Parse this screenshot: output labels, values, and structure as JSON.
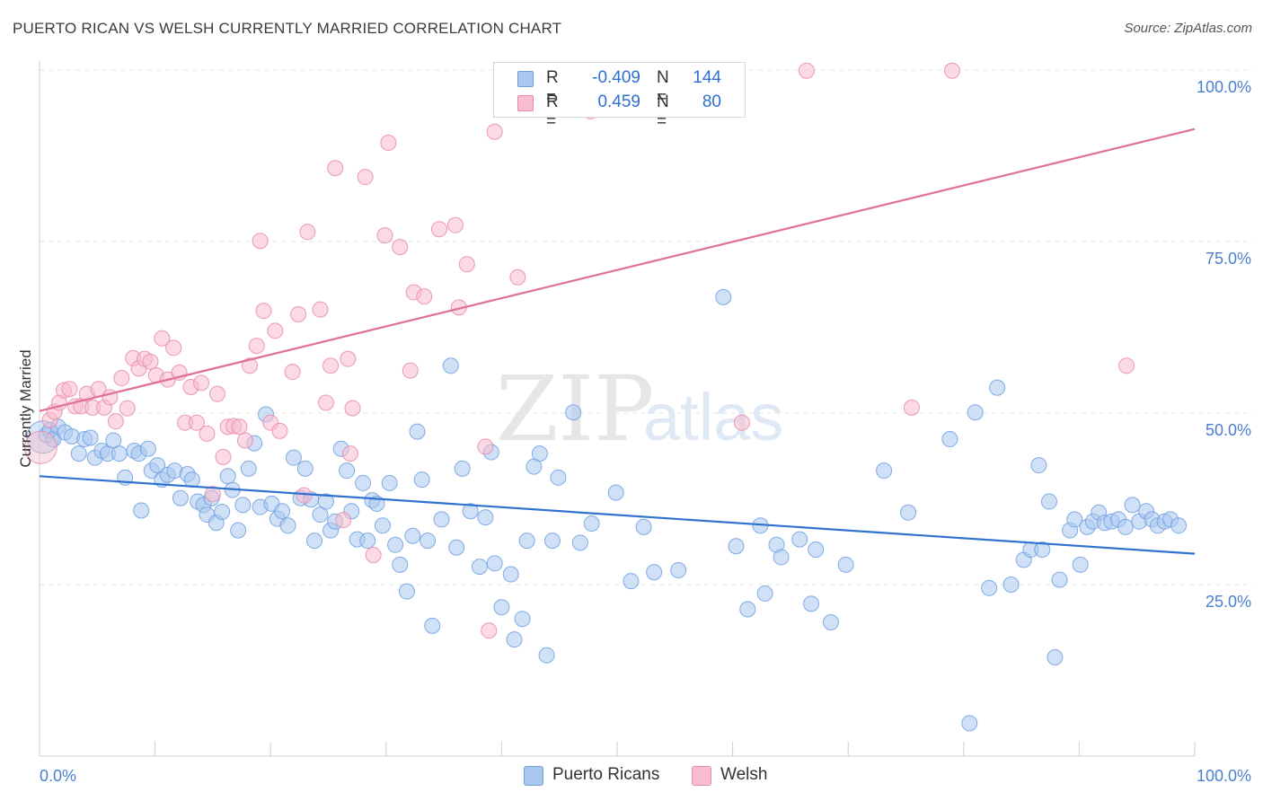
{
  "title": "PUERTO RICAN VS WELSH CURRENTLY MARRIED CORRELATION CHART",
  "source": "Source: ZipAtlas.com",
  "watermark": {
    "zip": "ZIP",
    "atlas": "atlas"
  },
  "legend": {
    "rows": [
      {
        "r_label": "R =",
        "r_value": "-0.409",
        "n_label": "N =",
        "n_value": "144",
        "color": "#a9c8f0",
        "border": "#6f9fdf"
      },
      {
        "r_label": "R =",
        "r_value": "0.459",
        "n_label": "N =",
        "n_value": "80",
        "color": "#f7bccd",
        "border": "#e78aa8"
      }
    ]
  },
  "bottom_legend": [
    {
      "label": "Puerto Ricans",
      "color": "#a9c8f0",
      "border": "#6f9fdf"
    },
    {
      "label": "Welsh",
      "color": "#f7bccd",
      "border": "#e78aa8"
    }
  ],
  "chart_data": {
    "type": "scatter",
    "title": "PUERTO RICAN VS WELSH CURRENTLY MARRIED CORRELATION CHART",
    "xlabel": "",
    "ylabel": "Currently Married",
    "xlim": [
      0,
      100
    ],
    "ylim": [
      0,
      100
    ],
    "x_tick_labels": [
      "0.0%",
      "100.0%"
    ],
    "y_ticks": [
      25,
      50,
      75,
      100
    ],
    "y_tick_labels": [
      "25.0%",
      "50.0%",
      "75.0%",
      "100.0%"
    ],
    "grid": true,
    "legend_position": "top-center",
    "series": [
      {
        "name": "Puerto Ricans",
        "color": "#6f9fdf",
        "fill": "#a9c8f0",
        "R": -0.409,
        "N": 144,
        "trend": {
          "x": [
            0,
            100
          ],
          "y": [
            40.8,
            29.5
          ]
        },
        "points": [
          [
            0.3,
            46.5
          ],
          [
            0.6,
            46.8
          ],
          [
            0.9,
            47.5
          ],
          [
            1.2,
            46.2
          ],
          [
            1.6,
            48.0
          ],
          [
            2.2,
            47.2
          ],
          [
            2.8,
            46.6
          ],
          [
            3.4,
            44.1
          ],
          [
            3.9,
            46.2
          ],
          [
            4.4,
            46.4
          ],
          [
            4.8,
            43.5
          ],
          [
            5.4,
            44.5
          ],
          [
            5.9,
            44.1
          ],
          [
            6.4,
            46.0
          ],
          [
            6.9,
            44.1
          ],
          [
            7.4,
            40.6
          ],
          [
            8.2,
            44.5
          ],
          [
            8.6,
            44.1
          ],
          [
            8.8,
            35.8
          ],
          [
            9.4,
            44.8
          ],
          [
            9.7,
            41.6
          ],
          [
            10.2,
            42.4
          ],
          [
            10.6,
            40.3
          ],
          [
            11.1,
            41.0
          ],
          [
            11.7,
            41.6
          ],
          [
            12.2,
            37.6
          ],
          [
            12.8,
            41.1
          ],
          [
            13.2,
            40.3
          ],
          [
            13.7,
            37.1
          ],
          [
            14.2,
            36.6
          ],
          [
            14.5,
            35.2
          ],
          [
            14.9,
            37.6
          ],
          [
            15.3,
            34.0
          ],
          [
            15.8,
            35.6
          ],
          [
            16.3,
            40.8
          ],
          [
            16.7,
            38.8
          ],
          [
            17.2,
            32.9
          ],
          [
            17.6,
            36.6
          ],
          [
            18.1,
            41.9
          ],
          [
            18.6,
            45.6
          ],
          [
            19.1,
            36.3
          ],
          [
            19.6,
            49.8
          ],
          [
            20.1,
            36.8
          ],
          [
            20.6,
            34.6
          ],
          [
            21.0,
            35.7
          ],
          [
            21.5,
            33.6
          ],
          [
            22.0,
            43.5
          ],
          [
            22.6,
            37.6
          ],
          [
            23.0,
            41.9
          ],
          [
            23.5,
            37.4
          ],
          [
            23.8,
            31.4
          ],
          [
            24.3,
            35.2
          ],
          [
            24.8,
            37.1
          ],
          [
            25.2,
            32.9
          ],
          [
            25.6,
            34.2
          ],
          [
            26.1,
            44.8
          ],
          [
            26.6,
            41.6
          ],
          [
            27.0,
            35.7
          ],
          [
            27.5,
            31.6
          ],
          [
            28.0,
            39.8
          ],
          [
            28.4,
            31.4
          ],
          [
            28.8,
            37.3
          ],
          [
            29.2,
            36.8
          ],
          [
            29.7,
            33.6
          ],
          [
            30.3,
            39.8
          ],
          [
            30.8,
            30.8
          ],
          [
            31.2,
            27.9
          ],
          [
            31.8,
            24.0
          ],
          [
            32.3,
            32.1
          ],
          [
            32.7,
            47.3
          ],
          [
            33.1,
            40.3
          ],
          [
            33.6,
            31.4
          ],
          [
            34.0,
            19.0
          ],
          [
            34.8,
            34.5
          ],
          [
            35.6,
            56.9
          ],
          [
            36.1,
            30.4
          ],
          [
            36.6,
            41.9
          ],
          [
            37.3,
            35.7
          ],
          [
            38.1,
            27.6
          ],
          [
            38.6,
            34.8
          ],
          [
            39.1,
            44.3
          ],
          [
            39.4,
            28.1
          ],
          [
            40.0,
            21.7
          ],
          [
            41.1,
            17.0
          ],
          [
            40.8,
            26.5
          ],
          [
            41.8,
            20.0
          ],
          [
            42.2,
            31.4
          ],
          [
            42.8,
            42.2
          ],
          [
            43.3,
            44.1
          ],
          [
            43.9,
            14.7
          ],
          [
            44.4,
            31.4
          ],
          [
            44.9,
            40.6
          ],
          [
            46.2,
            50.1
          ],
          [
            46.8,
            31.1
          ],
          [
            47.8,
            33.9
          ],
          [
            49.9,
            38.4
          ],
          [
            51.2,
            25.5
          ],
          [
            52.3,
            33.4
          ],
          [
            53.2,
            26.8
          ],
          [
            55.3,
            27.1
          ],
          [
            59.2,
            66.9
          ],
          [
            60.3,
            30.6
          ],
          [
            61.3,
            21.4
          ],
          [
            62.4,
            33.6
          ],
          [
            62.8,
            23.7
          ],
          [
            63.8,
            30.8
          ],
          [
            64.2,
            29.0
          ],
          [
            65.8,
            31.6
          ],
          [
            66.8,
            22.2
          ],
          [
            67.2,
            30.1
          ],
          [
            68.5,
            19.5
          ],
          [
            69.8,
            27.9
          ],
          [
            73.1,
            41.6
          ],
          [
            75.2,
            35.5
          ],
          [
            78.8,
            46.2
          ],
          [
            80.5,
            4.8
          ],
          [
            81.0,
            50.1
          ],
          [
            82.2,
            24.5
          ],
          [
            82.9,
            53.7
          ],
          [
            84.1,
            25.0
          ],
          [
            85.2,
            28.6
          ],
          [
            85.8,
            30.1
          ],
          [
            86.5,
            42.4
          ],
          [
            86.8,
            30.1
          ],
          [
            87.4,
            37.1
          ],
          [
            87.9,
            14.4
          ],
          [
            88.3,
            25.7
          ],
          [
            89.2,
            32.9
          ],
          [
            89.6,
            34.5
          ],
          [
            90.1,
            27.9
          ],
          [
            90.7,
            33.4
          ],
          [
            91.2,
            34.2
          ],
          [
            91.7,
            35.5
          ],
          [
            92.2,
            34.0
          ],
          [
            92.8,
            34.2
          ],
          [
            93.4,
            34.5
          ],
          [
            94.0,
            33.4
          ],
          [
            94.6,
            36.6
          ],
          [
            95.2,
            34.2
          ],
          [
            95.8,
            35.7
          ],
          [
            96.3,
            34.5
          ],
          [
            96.8,
            33.6
          ],
          [
            97.4,
            34.2
          ],
          [
            97.9,
            34.5
          ],
          [
            98.6,
            33.6
          ]
        ]
      },
      {
        "name": "Welsh",
        "color": "#e78aa8",
        "fill": "#f7bccd",
        "R": 0.459,
        "N": 80,
        "trend": {
          "x": [
            0,
            100
          ],
          "y": [
            50.3,
            91.4
          ]
        },
        "points": [
          [
            0.1,
            45.0
          ],
          [
            0.9,
            49.0
          ],
          [
            1.3,
            50.2
          ],
          [
            1.7,
            51.5
          ],
          [
            2.1,
            53.3
          ],
          [
            2.6,
            53.5
          ],
          [
            3.1,
            51.0
          ],
          [
            3.6,
            51.0
          ],
          [
            4.1,
            52.8
          ],
          [
            4.6,
            50.8
          ],
          [
            5.1,
            53.5
          ],
          [
            5.6,
            50.8
          ],
          [
            6.1,
            52.3
          ],
          [
            6.6,
            48.8
          ],
          [
            7.1,
            55.1
          ],
          [
            7.6,
            50.7
          ],
          [
            8.1,
            58.0
          ],
          [
            8.6,
            56.5
          ],
          [
            9.1,
            57.9
          ],
          [
            9.6,
            57.5
          ],
          [
            10.1,
            55.5
          ],
          [
            10.6,
            60.9
          ],
          [
            11.1,
            54.9
          ],
          [
            11.6,
            59.5
          ],
          [
            12.1,
            55.9
          ],
          [
            12.6,
            48.6
          ],
          [
            13.1,
            53.8
          ],
          [
            13.6,
            48.6
          ],
          [
            14.0,
            54.4
          ],
          [
            14.5,
            47.0
          ],
          [
            15.0,
            38.2
          ],
          [
            15.4,
            52.8
          ],
          [
            15.9,
            43.6
          ],
          [
            16.3,
            48.0
          ],
          [
            16.8,
            48.1
          ],
          [
            17.3,
            48.0
          ],
          [
            17.8,
            46.0
          ],
          [
            18.2,
            56.9
          ],
          [
            18.8,
            59.8
          ],
          [
            19.1,
            75.1
          ],
          [
            19.4,
            64.9
          ],
          [
            20.0,
            48.6
          ],
          [
            20.4,
            62.0
          ],
          [
            20.8,
            47.4
          ],
          [
            21.9,
            56.0
          ],
          [
            22.4,
            64.4
          ],
          [
            22.9,
            38.0
          ],
          [
            23.2,
            76.4
          ],
          [
            24.3,
            65.1
          ],
          [
            24.8,
            51.5
          ],
          [
            25.2,
            56.9
          ],
          [
            25.6,
            85.7
          ],
          [
            26.3,
            34.4
          ],
          [
            26.7,
            57.9
          ],
          [
            26.9,
            44.1
          ],
          [
            27.1,
            50.7
          ],
          [
            28.2,
            84.4
          ],
          [
            28.9,
            29.3
          ],
          [
            29.9,
            75.9
          ],
          [
            30.2,
            89.4
          ],
          [
            31.2,
            74.2
          ],
          [
            32.1,
            56.2
          ],
          [
            32.4,
            67.6
          ],
          [
            33.3,
            67.0
          ],
          [
            34.6,
            76.8
          ],
          [
            36.0,
            77.4
          ],
          [
            36.3,
            65.4
          ],
          [
            37.0,
            71.7
          ],
          [
            38.6,
            45.1
          ],
          [
            38.9,
            18.3
          ],
          [
            39.4,
            91.0
          ],
          [
            41.4,
            69.8
          ],
          [
            43.6,
            100.0
          ],
          [
            47.7,
            94.0
          ],
          [
            48.4,
            99.8
          ],
          [
            60.8,
            48.6
          ],
          [
            66.4,
            99.9
          ],
          [
            75.5,
            50.8
          ],
          [
            79.0,
            99.9
          ],
          [
            94.1,
            56.9
          ]
        ]
      }
    ]
  }
}
